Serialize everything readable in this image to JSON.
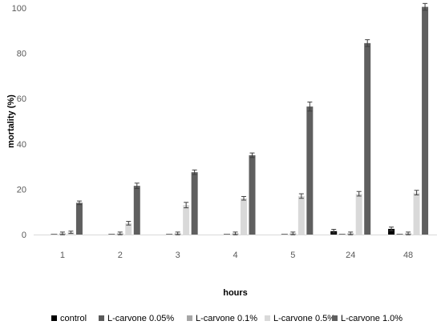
{
  "chart_data": {
    "type": "bar",
    "title": "",
    "xlabel": "hours",
    "ylabel": "mortality (%)",
    "ylim": [
      0,
      100
    ],
    "yticks": [
      0,
      20,
      40,
      60,
      80,
      100
    ],
    "grid": false,
    "legend_position": "bottom",
    "categories": [
      "1",
      "2",
      "3",
      "4",
      "5",
      "24",
      "48"
    ],
    "series": [
      {
        "name": "control",
        "color": "#000000",
        "values": [
          0,
          0,
          0,
          0,
          0,
          1.5,
          2.5
        ],
        "errors": [
          0,
          0,
          0,
          0,
          0,
          0.8,
          0.8
        ]
      },
      {
        "name": "L-carvone 0.05%",
        "color": "#5a5a5a",
        "values": [
          0.3,
          0.3,
          0.3,
          0.3,
          0.3,
          0.3,
          0.3
        ],
        "errors": [
          0,
          0,
          0,
          0,
          0,
          0,
          0
        ]
      },
      {
        "name": "L-carvone 0.1%",
        "color": "#a6a6a6",
        "values": [
          0.5,
          0.5,
          0.5,
          0.5,
          0.5,
          0.5,
          0.5
        ],
        "errors": [
          0.6,
          0.6,
          0.6,
          0.6,
          0.6,
          0.6,
          0.6
        ]
      },
      {
        "name": "L-carvone 0.5%",
        "color": "#d9d9d9",
        "values": [
          1,
          5,
          13,
          16,
          17,
          18,
          18.5
        ],
        "errors": [
          0.5,
          0.8,
          1.2,
          0.8,
          1,
          1,
          1
        ]
      },
      {
        "name": "L-carvone 1.0%",
        "color": "#5f5f5f",
        "values": [
          14,
          21.5,
          27.5,
          35,
          56.5,
          84.5,
          100.5
        ],
        "errors": [
          0.8,
          1.2,
          1,
          1,
          2,
          1.5,
          1.5
        ]
      }
    ]
  }
}
